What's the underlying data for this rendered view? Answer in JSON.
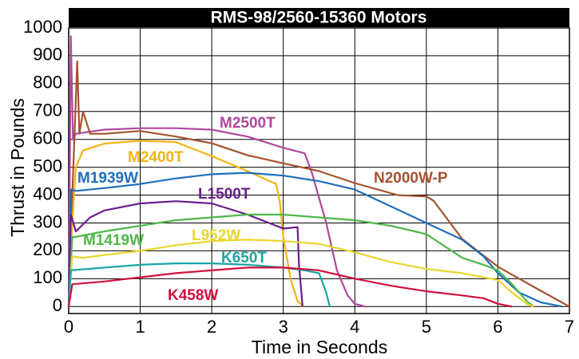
{
  "chart_data": {
    "type": "line",
    "title": "RMS-98/2560-15360 Motors",
    "x_label": "Time in Seconds",
    "y_label": "Thrust in Pounds",
    "xlim": [
      0,
      7
    ],
    "ylim": [
      -25,
      1000
    ],
    "xticks": [
      0,
      1,
      2,
      3,
      4,
      5,
      6,
      7
    ],
    "yticks": [
      0,
      100,
      200,
      300,
      400,
      500,
      600,
      700,
      800,
      900,
      1000
    ],
    "grid": true,
    "series": [
      {
        "name": "M2500T",
        "color": "#b0489e",
        "x": [
          0,
          0.03,
          0.06,
          0.1,
          0.5,
          1,
          1.5,
          2,
          2.5,
          3,
          3.3,
          3.4,
          3.6,
          3.75,
          3.9,
          4.0,
          4.15
        ],
        "values": [
          0,
          970,
          600,
          620,
          635,
          640,
          640,
          635,
          610,
          570,
          550,
          480,
          300,
          130,
          40,
          10,
          0
        ]
      },
      {
        "name": "N2000W-P",
        "color": "#a4532e",
        "x": [
          0,
          0.05,
          0.12,
          0.15,
          0.2,
          0.3,
          0.5,
          1,
          1.5,
          2,
          2.5,
          3,
          3.5,
          4,
          4.6,
          5.0,
          5.1,
          5.5,
          6,
          6.5,
          7
        ],
        "values": [
          0,
          400,
          880,
          620,
          700,
          620,
          620,
          630,
          610,
          586,
          543,
          514,
          486,
          443,
          400,
          395,
          380,
          243,
          143,
          71,
          0
        ]
      },
      {
        "name": "M2400T",
        "color": "#f2b415",
        "x": [
          0,
          0.05,
          0.1,
          0.2,
          0.5,
          1,
          1.5,
          2,
          2.5,
          2.9,
          2.95,
          3.0,
          3.1,
          3.2,
          3.28
        ],
        "values": [
          0,
          300,
          500,
          560,
          585,
          595,
          590,
          540,
          486,
          440,
          380,
          250,
          100,
          20,
          0
        ]
      },
      {
        "name": "M1939W",
        "color": "#1f6fbd",
        "x": [
          0,
          0.03,
          0.1,
          0.5,
          1,
          1.5,
          2,
          2.5,
          3,
          3.5,
          4,
          4.5,
          5,
          5.5,
          5.8,
          6,
          6.3,
          6.6,
          6.9
        ],
        "values": [
          0,
          420,
          415,
          425,
          440,
          460,
          475,
          480,
          470,
          450,
          420,
          360,
          300,
          240,
          180,
          120,
          50,
          15,
          0
        ]
      },
      {
        "name": "L1500T",
        "color": "#6b1d8c",
        "x": [
          0,
          0.03,
          0.1,
          0.3,
          0.5,
          1,
          1.5,
          2,
          2.5,
          2.8,
          3.0,
          3.2,
          3.22,
          3.27
        ],
        "values": [
          0,
          330,
          270,
          320,
          345,
          370,
          378,
          370,
          330,
          300,
          280,
          285,
          150,
          0
        ]
      },
      {
        "name": "M1419W",
        "color": "#4db848",
        "x": [
          0,
          0.05,
          0.1,
          0.5,
          1,
          1.5,
          2,
          2.5,
          3,
          3.5,
          4,
          4.5,
          5,
          5.5,
          5.8,
          6.0,
          6.2,
          6.4,
          6.5
        ],
        "values": [
          0,
          250,
          250,
          270,
          290,
          310,
          320,
          330,
          330,
          320,
          310,
          290,
          260,
          175,
          150,
          130,
          80,
          20,
          0
        ]
      },
      {
        "name": "L952W",
        "color": "#e9d62c",
        "x": [
          0,
          0.05,
          0.2,
          0.5,
          1,
          1.5,
          2,
          2.5,
          3,
          3.5,
          4,
          4.5,
          5,
          5.5,
          6,
          6.2,
          6.4,
          6.5
        ],
        "values": [
          0,
          180,
          175,
          185,
          200,
          220,
          235,
          240,
          235,
          225,
          195,
          160,
          135,
          120,
          95,
          50,
          10,
          0
        ]
      },
      {
        "name": "K650T",
        "color": "#1aa5a5",
        "x": [
          0,
          0.03,
          0.5,
          1,
          1.5,
          2,
          2.5,
          3,
          3.3,
          3.5,
          3.6,
          3.65
        ],
        "values": [
          0,
          130,
          140,
          150,
          155,
          155,
          150,
          140,
          130,
          120,
          50,
          0
        ]
      },
      {
        "name": "K458W",
        "color": "#d0103c",
        "x": [
          0,
          0.05,
          0.5,
          1,
          1.5,
          2,
          2.5,
          3,
          3.5,
          4,
          4.5,
          5,
          5.5,
          5.8,
          6.0,
          6.2
        ],
        "values": [
          0,
          80,
          90,
          105,
          120,
          130,
          140,
          140,
          130,
          100,
          75,
          55,
          40,
          30,
          10,
          0
        ]
      }
    ]
  }
}
